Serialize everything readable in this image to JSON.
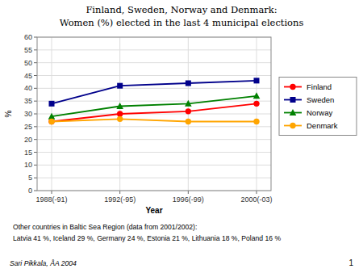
{
  "chart_data": {
    "type": "line",
    "title": "Finland, Sweden, Norway and Denmark:",
    "subtitle": "Women (%) elected in the last 4 municipal elections",
    "x_label": "Year",
    "y_label": "%",
    "categories": [
      "1988(-91)",
      "1992(-95)",
      "1996(-99)",
      "2000(-03)"
    ],
    "series": [
      {
        "name": "Finland",
        "color": "#FF0000",
        "marker": "circle",
        "values": [
          27,
          30,
          31,
          34
        ]
      },
      {
        "name": "Sweden",
        "color": "#00008B",
        "marker": "square",
        "values": [
          34,
          41,
          42,
          43
        ]
      },
      {
        "name": "Norway",
        "color": "#008000",
        "marker": "triangle",
        "values": [
          29,
          33,
          34,
          37
        ]
      },
      {
        "name": "Denmark",
        "color": "#FFA500",
        "marker": "circle",
        "values": [
          27,
          28,
          27,
          27
        ]
      }
    ],
    "ylim": [
      0,
      60
    ],
    "yticks": [
      0,
      5,
      10,
      15,
      20,
      25,
      30,
      35,
      40,
      45,
      50,
      55,
      60
    ],
    "grid": true,
    "legend": "right",
    "annotations": [
      "Other countries in Baltic Sea Region (data from 2001/2002):",
      "Latvia 41 %, Iceland 29 %, Germany 24 %, Estonia 21 %, Lithuania 18 %, Poland 16 %",
      "Sari Pikkala, ÅA 2004",
      "1"
    ]
  }
}
